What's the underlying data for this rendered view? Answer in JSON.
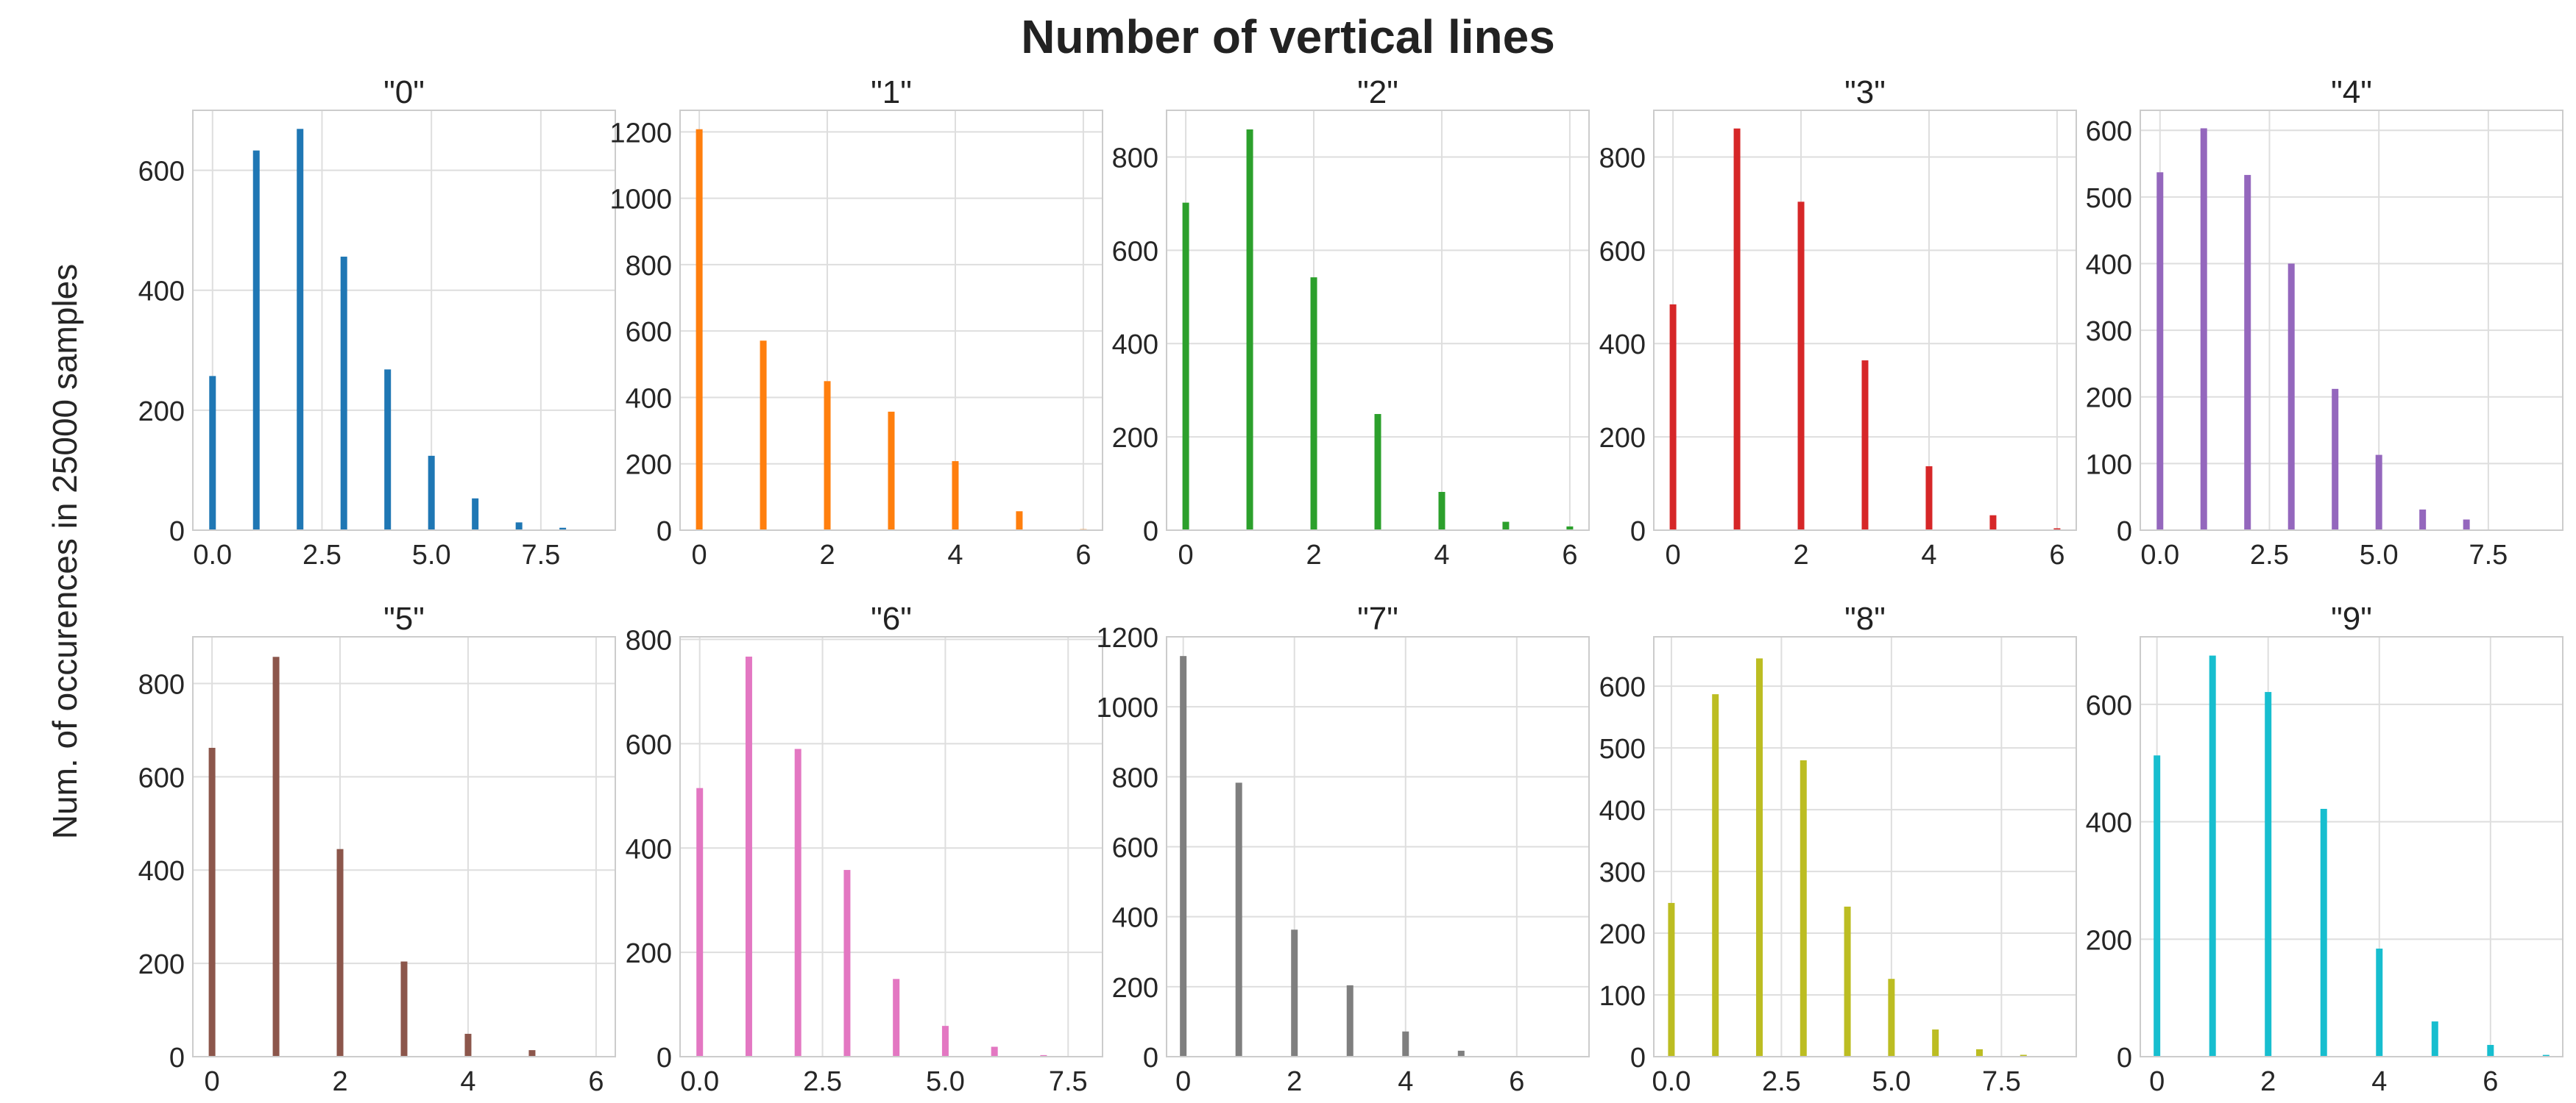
{
  "figure": {
    "title": "Number of vertical lines",
    "ylabel": "Num. of occurences in 25000 samples"
  },
  "chart_data": [
    {
      "type": "bar",
      "title": "\"0\"",
      "color": "#1f77b4",
      "x": [
        0,
        1,
        2,
        3,
        4,
        5,
        6,
        7,
        8
      ],
      "values": [
        257,
        633,
        669,
        456,
        268,
        124,
        53,
        13,
        4
      ],
      "xlim": [
        -0.45,
        9.2
      ],
      "ylim": [
        0,
        700
      ],
      "xticks": [
        0,
        2.5,
        5,
        7.5
      ],
      "xtick_labels": [
        "0.0",
        "2.5",
        "5.0",
        "7.5"
      ],
      "yticks": [
        0,
        200,
        400,
        600
      ],
      "ytick_labels": [
        "0",
        "200",
        "400",
        "600"
      ],
      "grid": true
    },
    {
      "type": "bar",
      "title": "\"1\"",
      "color": "#ff7f0e",
      "x": [
        0,
        1,
        2,
        3,
        4,
        5,
        6
      ],
      "values": [
        1208,
        571,
        449,
        357,
        208,
        57,
        3
      ],
      "xlim": [
        -0.3,
        6.3
      ],
      "ylim": [
        0,
        1265
      ],
      "xticks": [
        0,
        2,
        4,
        6
      ],
      "xtick_labels": [
        "0",
        "2",
        "4",
        "6"
      ],
      "yticks": [
        0,
        200,
        400,
        600,
        800,
        1000,
        1200
      ],
      "ytick_labels": [
        "0",
        "200",
        "400",
        "600",
        "800",
        "1000",
        "1200"
      ],
      "grid": true
    },
    {
      "type": "bar",
      "title": "\"2\"",
      "color": "#2ca02c",
      "x": [
        0,
        1,
        2,
        3,
        4,
        5,
        6
      ],
      "values": [
        702,
        859,
        542,
        249,
        82,
        18,
        8
      ],
      "xlim": [
        -0.3,
        6.3
      ],
      "ylim": [
        0,
        900
      ],
      "xticks": [
        0,
        2,
        4,
        6
      ],
      "xtick_labels": [
        "0",
        "2",
        "4",
        "6"
      ],
      "yticks": [
        0,
        200,
        400,
        600,
        800
      ],
      "ytick_labels": [
        "0",
        "200",
        "400",
        "600",
        "800"
      ],
      "grid": true
    },
    {
      "type": "bar",
      "title": "\"3\"",
      "color": "#d62728",
      "x": [
        0,
        1,
        2,
        3,
        4,
        5,
        6
      ],
      "values": [
        484,
        861,
        704,
        364,
        137,
        32,
        4
      ],
      "xlim": [
        -0.3,
        6.3
      ],
      "ylim": [
        0,
        900
      ],
      "xticks": [
        0,
        2,
        4,
        6
      ],
      "xtick_labels": [
        "0",
        "2",
        "4",
        "6"
      ],
      "yticks": [
        0,
        200,
        400,
        600,
        800
      ],
      "ytick_labels": [
        "0",
        "200",
        "400",
        "600",
        "800"
      ],
      "grid": true
    },
    {
      "type": "bar",
      "title": "\"4\"",
      "color": "#9467bd",
      "x": [
        0,
        1,
        2,
        3,
        4,
        5,
        6,
        7
      ],
      "values": [
        537,
        603,
        533,
        400,
        212,
        113,
        31,
        16
      ],
      "xlim": [
        -0.45,
        9.2
      ],
      "ylim": [
        0,
        630
      ],
      "xticks": [
        0,
        2.5,
        5,
        7.5
      ],
      "xtick_labels": [
        "0.0",
        "2.5",
        "5.0",
        "7.5"
      ],
      "yticks": [
        0,
        100,
        200,
        300,
        400,
        500,
        600
      ],
      "ytick_labels": [
        "0",
        "100",
        "200",
        "300",
        "400",
        "500",
        "600"
      ],
      "grid": true
    },
    {
      "type": "bar",
      "title": "\"5\"",
      "color": "#8c564b",
      "x": [
        0,
        1,
        2,
        3,
        4,
        5
      ],
      "values": [
        662,
        857,
        445,
        204,
        49,
        14
      ],
      "xlim": [
        -0.3,
        6.3
      ],
      "ylim": [
        0,
        900
      ],
      "xticks": [
        0,
        2,
        4,
        6
      ],
      "xtick_labels": [
        "0",
        "2",
        "4",
        "6"
      ],
      "yticks": [
        0,
        200,
        400,
        600,
        800
      ],
      "ytick_labels": [
        "0",
        "200",
        "400",
        "600",
        "800"
      ],
      "grid": true
    },
    {
      "type": "bar",
      "title": "\"6\"",
      "color": "#e377c2",
      "x": [
        0,
        1,
        2,
        3,
        4,
        5,
        6,
        7
      ],
      "values": [
        515,
        767,
        590,
        358,
        149,
        59,
        19,
        3
      ],
      "xlim": [
        -0.4,
        8.2
      ],
      "ylim": [
        0,
        805
      ],
      "xticks": [
        0,
        2.5,
        5,
        7.5
      ],
      "xtick_labels": [
        "0.0",
        "2.5",
        "5.0",
        "7.5"
      ],
      "yticks": [
        0,
        200,
        400,
        600,
        800
      ],
      "ytick_labels": [
        "0",
        "200",
        "400",
        "600",
        "800"
      ],
      "grid": true
    },
    {
      "type": "bar",
      "title": "\"7\"",
      "color": "#7f7f7f",
      "x": [
        0,
        1,
        2,
        3,
        4,
        5,
        6
      ],
      "values": [
        1145,
        783,
        363,
        204,
        72,
        17,
        2
      ],
      "xlim": [
        -0.3,
        7.3
      ],
      "ylim": [
        0,
        1200
      ],
      "xticks": [
        0,
        2,
        4,
        6
      ],
      "xtick_labels": [
        "0",
        "2",
        "4",
        "6"
      ],
      "yticks": [
        0,
        200,
        400,
        600,
        800,
        1000,
        1200
      ],
      "ytick_labels": [
        "0",
        "200",
        "400",
        "600",
        "800",
        "1000",
        "1200"
      ],
      "grid": true
    },
    {
      "type": "bar",
      "title": "\"8\"",
      "color": "#bcbd22",
      "x": [
        0,
        1,
        2,
        3,
        4,
        5,
        6,
        7,
        8
      ],
      "values": [
        249,
        587,
        645,
        480,
        243,
        126,
        44,
        12,
        3
      ],
      "xlim": [
        -0.4,
        9.2
      ],
      "ylim": [
        0,
        680
      ],
      "xticks": [
        0,
        2.5,
        5,
        7.5
      ],
      "xtick_labels": [
        "0.0",
        "2.5",
        "5.0",
        "7.5"
      ],
      "yticks": [
        0,
        100,
        200,
        300,
        400,
        500,
        600
      ],
      "ytick_labels": [
        "0",
        "100",
        "200",
        "300",
        "400",
        "500",
        "600"
      ],
      "grid": true
    },
    {
      "type": "bar",
      "title": "\"9\"",
      "color": "#17becf",
      "x": [
        0,
        1,
        2,
        3,
        4,
        5,
        6,
        7
      ],
      "values": [
        513,
        683,
        621,
        422,
        184,
        60,
        20,
        3
      ],
      "xlim": [
        -0.3,
        7.3
      ],
      "ylim": [
        0,
        715
      ],
      "xticks": [
        0,
        2,
        4,
        6
      ],
      "xtick_labels": [
        "0",
        "2",
        "4",
        "6"
      ],
      "yticks": [
        0,
        200,
        400,
        600
      ],
      "ytick_labels": [
        "0",
        "200",
        "400",
        "600"
      ],
      "grid": true
    }
  ]
}
